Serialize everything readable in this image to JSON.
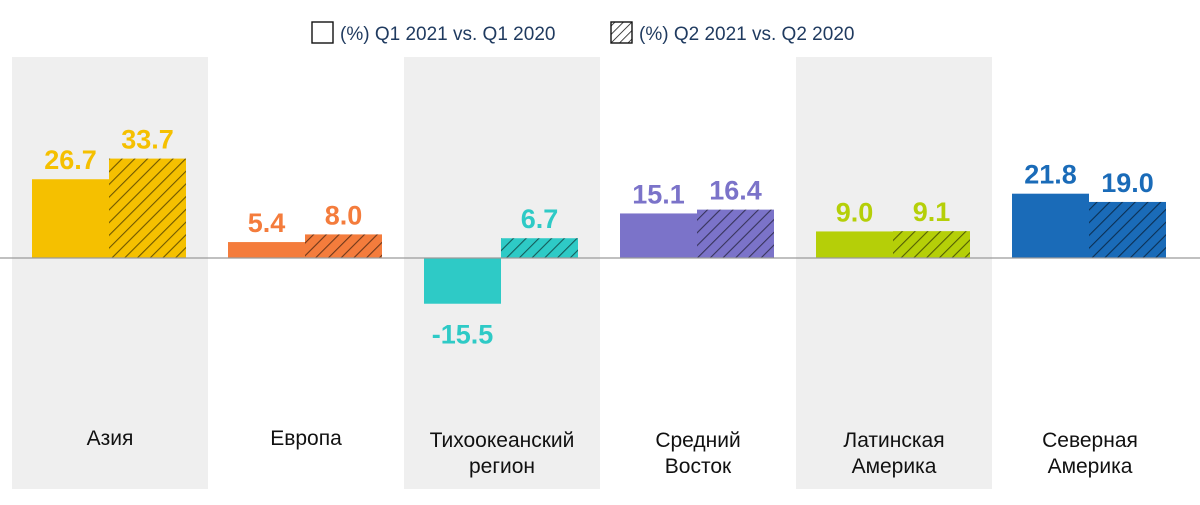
{
  "chart_data": {
    "type": "bar",
    "categories": [
      "Азия",
      "Европа",
      "Тихоокеанский регион",
      "Средний Восток",
      "Латинская Америка",
      "Северная Америка"
    ],
    "category_lines": [
      [
        "Азия"
      ],
      [
        "Европа"
      ],
      [
        "Тихоокеанский",
        "регион"
      ],
      [
        "Средний",
        "Восток"
      ],
      [
        "Латинская",
        "Америка"
      ],
      [
        "Северная",
        "Америка"
      ]
    ],
    "series": [
      {
        "name": "(%) Q1 2021 vs. Q1 2020",
        "values": [
          26.7,
          5.4,
          -15.5,
          15.1,
          9.0,
          21.8
        ],
        "labels": [
          "26.7",
          "5.4",
          "-15.5",
          "15.1",
          "9.0",
          "21.8"
        ],
        "pattern": "solid"
      },
      {
        "name": "(%) Q2 2021 vs. Q2 2020",
        "values": [
          33.7,
          8.0,
          6.7,
          16.4,
          9.1,
          19.0
        ],
        "labels": [
          "33.7",
          "8.0",
          "6.7",
          "16.4",
          "9.1",
          "19.0"
        ],
        "pattern": "hatched"
      }
    ],
    "colors": [
      "#f5c000",
      "#f47c3c",
      "#2ecac6",
      "#7b73c9",
      "#b5cf08",
      "#1a6bb8"
    ],
    "label_colors": [
      "#f5c000",
      "#f47c3c",
      "#2ecac6",
      "#7b73c9",
      "#b5cf08",
      "#1a6bb8"
    ],
    "ylim": [
      -45,
      45
    ],
    "legend_position": "top-center",
    "alternating_background": true,
    "background_color": "#efefef"
  }
}
